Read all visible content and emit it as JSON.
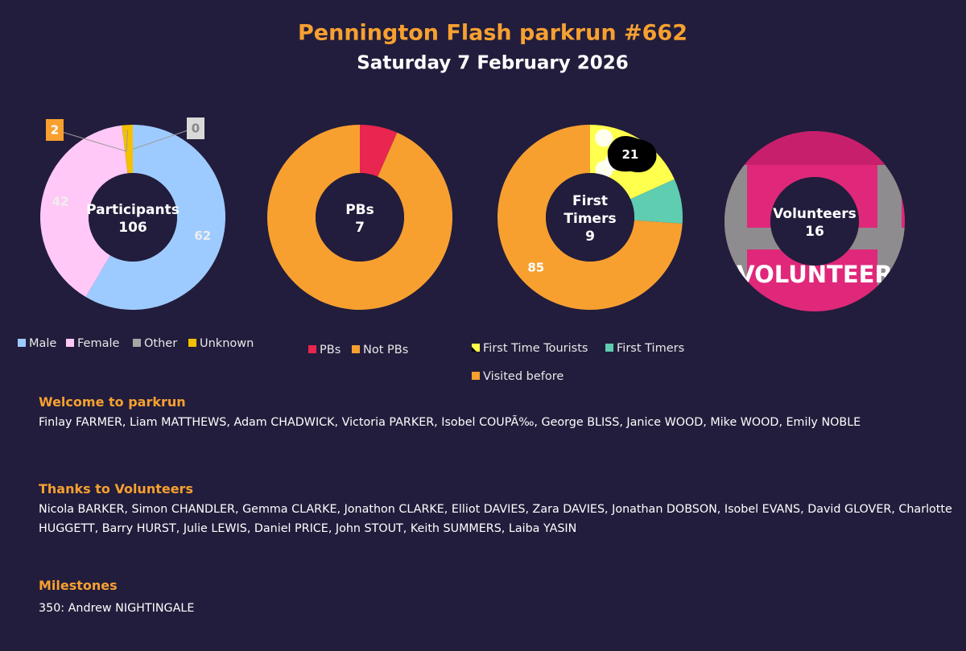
{
  "header": {
    "title": "Pennington Flash parkrun #662",
    "subtitle": "Saturday 7 February 2026"
  },
  "chart_data": [
    {
      "type": "donut",
      "center_label": "Participants",
      "center_value": 106,
      "categories": [
        "Male",
        "Female",
        "Other",
        "Unknown"
      ],
      "values": [
        62,
        42,
        0,
        2
      ],
      "colors": [
        "#9ecbff",
        "#ffc8f7",
        "#a6a6a6",
        "#f5c000"
      ]
    },
    {
      "type": "donut",
      "center_label": "PBs",
      "center_value": 7,
      "categories": [
        "PBs",
        "Not PBs"
      ],
      "values": [
        7,
        99
      ],
      "colors": [
        "#e8264f",
        "#f7a030"
      ]
    },
    {
      "type": "donut",
      "center_label": "First Timers",
      "center_value": 9,
      "categories": [
        "First Time Tourists",
        "First Timers",
        "Visited before"
      ],
      "values": [
        21,
        9,
        85
      ],
      "colors": [
        "#ffff4d",
        "#5ecdb0",
        "#f7a030"
      ]
    },
    {
      "type": "image-ring",
      "center_label": "Volunteers",
      "center_value": 16,
      "image_text": "VOLUNTEER"
    }
  ],
  "sections": [
    {
      "heading": "Welcome to parkrun",
      "text": "Finlay FARMER, Liam MATTHEWS, Adam CHADWICK, Victoria PARKER, Isobel COUPÃ‰, George BLISS, Janice WOOD, Mike WOOD, Emily NOBLE"
    },
    {
      "heading": "Thanks to Volunteers",
      "text": "Nicola BARKER, Simon CHANDLER, Gemma CLARKE, Jonathon CLARKE, Elliot DAVIES, Zara DAVIES, Jonathan DOBSON, Isobel EVANS, David GLOVER, Charlotte HUGGETT, Barry HURST, Julie LEWIS, Daniel PRICE, John STOUT, Keith SUMMERS, Laiba YASIN"
    },
    {
      "heading": "Milestones",
      "text": "350: Andrew NIGHTINGALE"
    }
  ]
}
